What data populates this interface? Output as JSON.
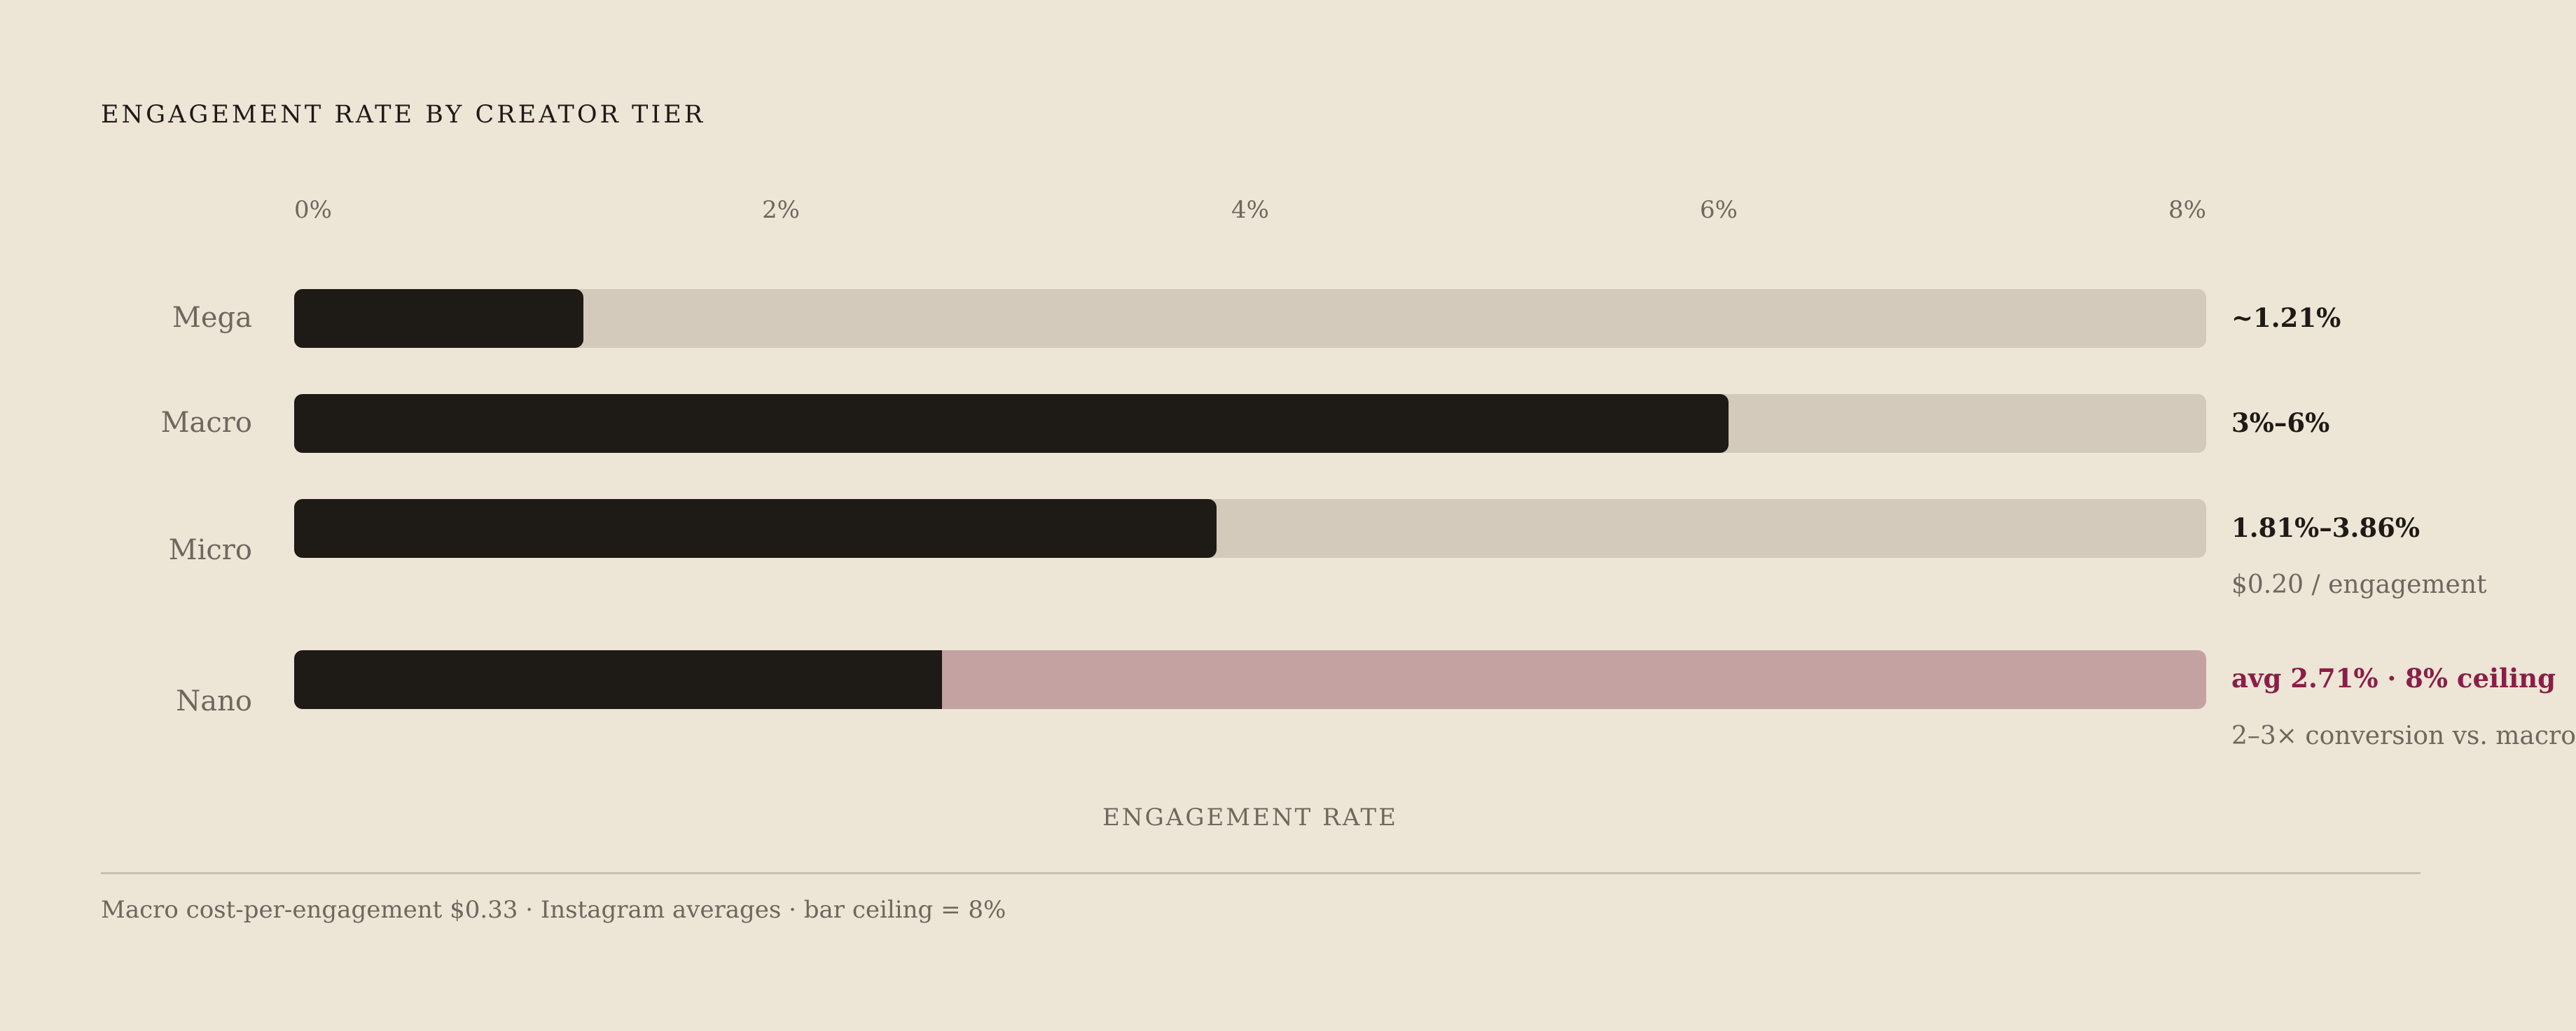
{
  "chart_data": {
    "type": "bar",
    "orientation": "horizontal",
    "title": "ENGAGEMENT RATE BY CREATOR TIER",
    "xlabel": "ENGAGEMENT RATE",
    "xlim": [
      0,
      8
    ],
    "ticks": [
      "0%",
      "2%",
      "4%",
      "6%",
      "8%"
    ],
    "categories": [
      "Mega",
      "Macro",
      "Micro",
      "Nano"
    ],
    "values": [
      1.21,
      6,
      3.86,
      2.71
    ],
    "value_labels": [
      "~1.21%",
      "3%–6%",
      "1.81%–3.86%",
      "avg 2.71% · 8% ceiling"
    ],
    "notes": [
      "",
      "",
      "$0.20 / engagement",
      "2–3× conversion vs. macro"
    ],
    "highlight_category": "Nano",
    "footer": "Macro cost-per-engagement $0.33 · Instagram averages · bar ceiling = 8%",
    "colors": {
      "bar": "#1E1A16",
      "track": "#D4CABC",
      "ceiling_track": "#C4A2A2",
      "accent": "#8A1E48",
      "background": "#EDE5D6"
    }
  }
}
